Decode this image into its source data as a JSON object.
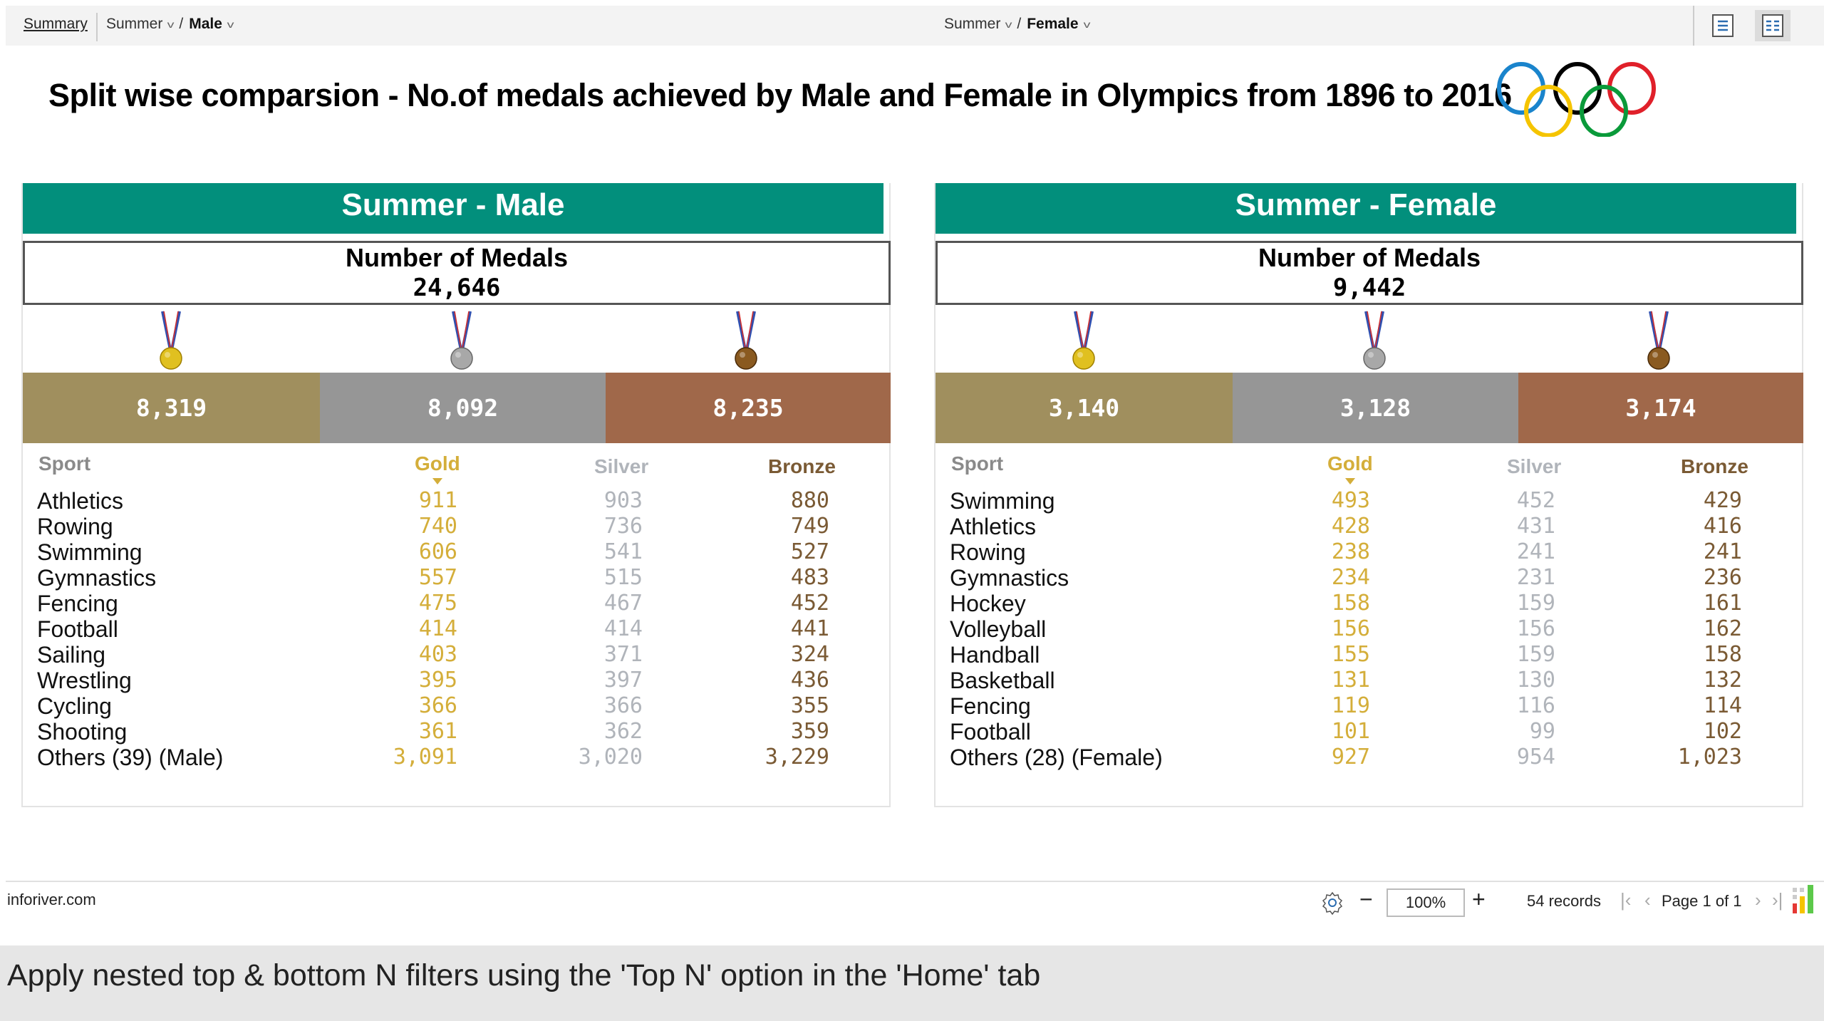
{
  "toolbar": {
    "summary": "Summary",
    "left_crumb": {
      "level1": "Summer",
      "level2": "Male"
    },
    "right_crumb": {
      "level1": "Summer",
      "level2": "Female"
    },
    "separator": "/",
    "views": [
      "single-column-view-icon",
      "two-column-view-icon"
    ]
  },
  "title": "Split wise comparsion - No.of medals achieved by Male and Female in Olympics from 1896 to 2016",
  "colors": {
    "teal": "#028f7c",
    "gold_bar": "#a08f5e",
    "silver_bar": "#969696",
    "bronze_bar": "#a0684a",
    "gold_text": "#d4ae3a",
    "silver_text": "#b0b4ba",
    "bronze_text": "#7a5a34"
  },
  "panels": [
    {
      "header": "Summer - Male",
      "medals_label": "Number of Medals",
      "total": "24,646",
      "gold": "8,319",
      "silver": "8,092",
      "bronze": "8,235",
      "columns": [
        "Sport",
        "Gold",
        "Silver",
        "Bronze"
      ],
      "rows": [
        [
          "Athletics",
          "911",
          "903",
          "880"
        ],
        [
          "Rowing",
          "740",
          "736",
          "749"
        ],
        [
          "Swimming",
          "606",
          "541",
          "527"
        ],
        [
          "Gymnastics",
          "557",
          "515",
          "483"
        ],
        [
          "Fencing",
          "475",
          "467",
          "452"
        ],
        [
          "Football",
          "414",
          "414",
          "441"
        ],
        [
          "Sailing",
          "403",
          "371",
          "324"
        ],
        [
          "Wrestling",
          "395",
          "397",
          "436"
        ],
        [
          "Cycling",
          "366",
          "366",
          "355"
        ],
        [
          "Shooting",
          "361",
          "362",
          "359"
        ],
        [
          "Others (39) (Male)",
          "3,091",
          "3,020",
          "3,229"
        ]
      ]
    },
    {
      "header": "Summer - Female",
      "medals_label": "Number of Medals",
      "total": "9,442",
      "gold": "3,140",
      "silver": "3,128",
      "bronze": "3,174",
      "columns": [
        "Sport",
        "Gold",
        "Silver",
        "Bronze"
      ],
      "rows": [
        [
          "Swimming",
          "493",
          "452",
          "429"
        ],
        [
          "Athletics",
          "428",
          "431",
          "416"
        ],
        [
          "Rowing",
          "238",
          "241",
          "241"
        ],
        [
          "Gymnastics",
          "234",
          "231",
          "236"
        ],
        [
          "Hockey",
          "158",
          "159",
          "161"
        ],
        [
          "Volleyball",
          "156",
          "156",
          "162"
        ],
        [
          "Handball",
          "155",
          "159",
          "158"
        ],
        [
          "Basketball",
          "131",
          "130",
          "132"
        ],
        [
          "Fencing",
          "119",
          "116",
          "114"
        ],
        [
          "Football",
          "101",
          "99",
          "102"
        ],
        [
          "Others (28) (Female)",
          "927",
          "954",
          "1,023"
        ]
      ]
    }
  ],
  "footer": {
    "site": "inforiver.com",
    "zoom": "100%",
    "records": "54 records",
    "page": "Page 1 of 1"
  },
  "banner": "Apply nested top & bottom N filters using the 'Top N' option in the 'Home' tab"
}
